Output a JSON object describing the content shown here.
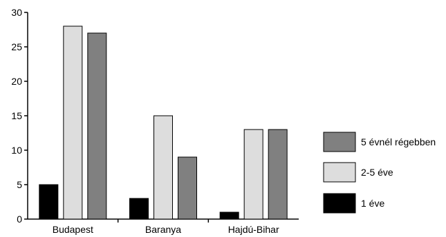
{
  "chart_data": {
    "type": "bar",
    "categories": [
      "Budapest",
      "Baranya",
      "Hajdú-Bihar"
    ],
    "series": [
      {
        "name": "1 éve",
        "values": [
          5,
          3,
          1
        ],
        "color": "#000000"
      },
      {
        "name": "2-5 éve",
        "values": [
          28,
          15,
          13
        ],
        "color": "#dddddd"
      },
      {
        "name": "5 évnél régebben",
        "values": [
          27,
          9,
          13
        ],
        "color": "#808080"
      }
    ],
    "ylim": [
      0,
      30
    ],
    "yticks": [
      0,
      5,
      10,
      15,
      20,
      25,
      30
    ],
    "ytick_labels": [
      "0",
      "5",
      "10",
      "15",
      "20",
      "25",
      "30"
    ],
    "grid": false,
    "legend_position": "right",
    "legend_order": [
      "5 évnél régebben",
      "2-5 éve",
      "1 éve"
    ]
  }
}
